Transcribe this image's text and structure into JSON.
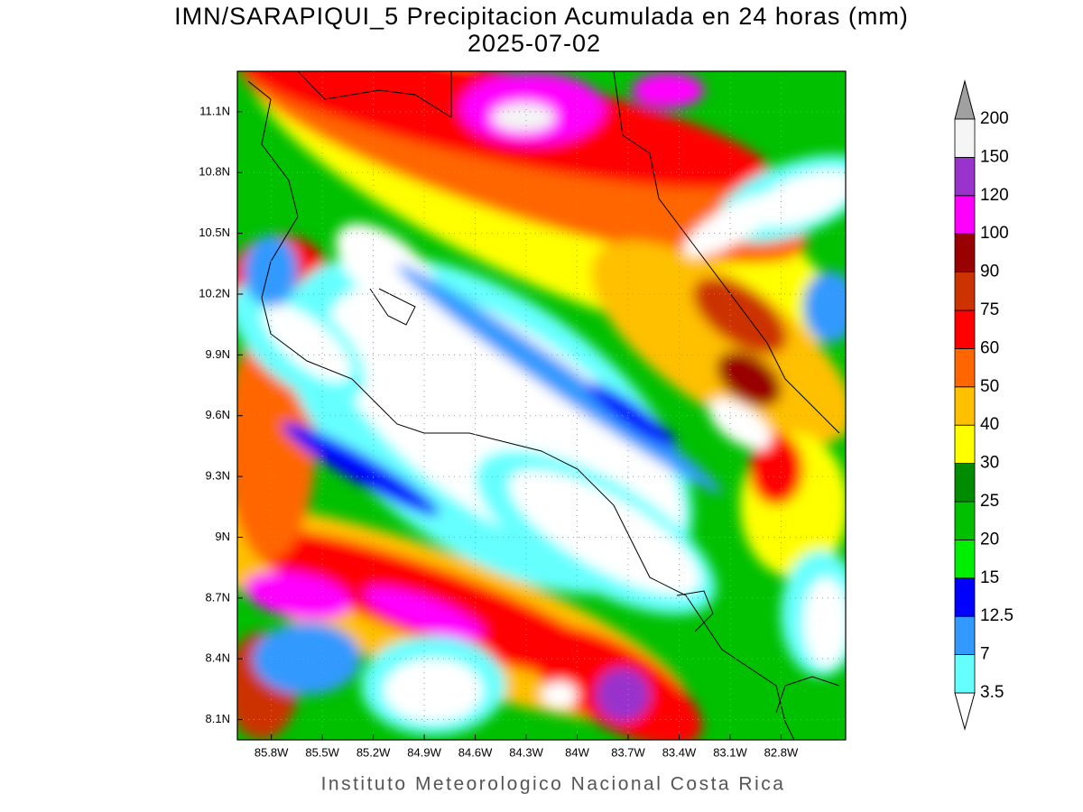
{
  "title": "IMN/SARAPIQUI_5 Precipitacion Acumulada en 24 horas (mm)",
  "subtitle": "2025-07-02",
  "map": {
    "xlim": [
      -86.0,
      -82.42
    ],
    "ylim": [
      8.0,
      11.3
    ],
    "lon_ticks": [
      {
        "value": -85.8,
        "label": "85.8W"
      },
      {
        "value": -85.5,
        "label": "85.5W"
      },
      {
        "value": -85.2,
        "label": "85.2W"
      },
      {
        "value": -84.9,
        "label": "84.9W"
      },
      {
        "value": -84.6,
        "label": "84.6W"
      },
      {
        "value": -84.3,
        "label": "84.3W"
      },
      {
        "value": -84.0,
        "label": "84W"
      },
      {
        "value": -83.7,
        "label": "83.7W"
      },
      {
        "value": -83.4,
        "label": "83.4W"
      },
      {
        "value": -83.1,
        "label": "83.1W"
      },
      {
        "value": -82.8,
        "label": "82.8W"
      }
    ],
    "lat_ticks": [
      {
        "value": 8.1,
        "label": "8.1N"
      },
      {
        "value": 8.4,
        "label": "8.4N"
      },
      {
        "value": 8.7,
        "label": "8.7N"
      },
      {
        "value": 9.0,
        "label": "9N"
      },
      {
        "value": 9.3,
        "label": "9.3N"
      },
      {
        "value": 9.6,
        "label": "9.6N"
      },
      {
        "value": 9.9,
        "label": "9.9N"
      },
      {
        "value": 10.2,
        "label": "10.2N"
      },
      {
        "value": 10.5,
        "label": "10.5N"
      },
      {
        "value": 10.8,
        "label": "10.8N"
      },
      {
        "value": 11.1,
        "label": "11.1N"
      }
    ],
    "grid": true
  },
  "colorbar": {
    "levels": [
      3.5,
      7,
      12.5,
      15,
      20,
      25,
      30,
      40,
      50,
      60,
      75,
      90,
      100,
      120,
      150,
      200
    ],
    "colors": [
      "#66ffff",
      "#3399ff",
      "#0000ff",
      "#00ee00",
      "#00c000",
      "#008c00",
      "#ffff00",
      "#ffc000",
      "#ff6600",
      "#ff0000",
      "#cc3300",
      "#990000",
      "#ff00ff",
      "#9933cc",
      "#f5f5f5"
    ],
    "under_color": "#ffffff",
    "over_color": "#a0a0a0"
  },
  "footer": "Instituto Meteorologico Nacional Costa Rica"
}
